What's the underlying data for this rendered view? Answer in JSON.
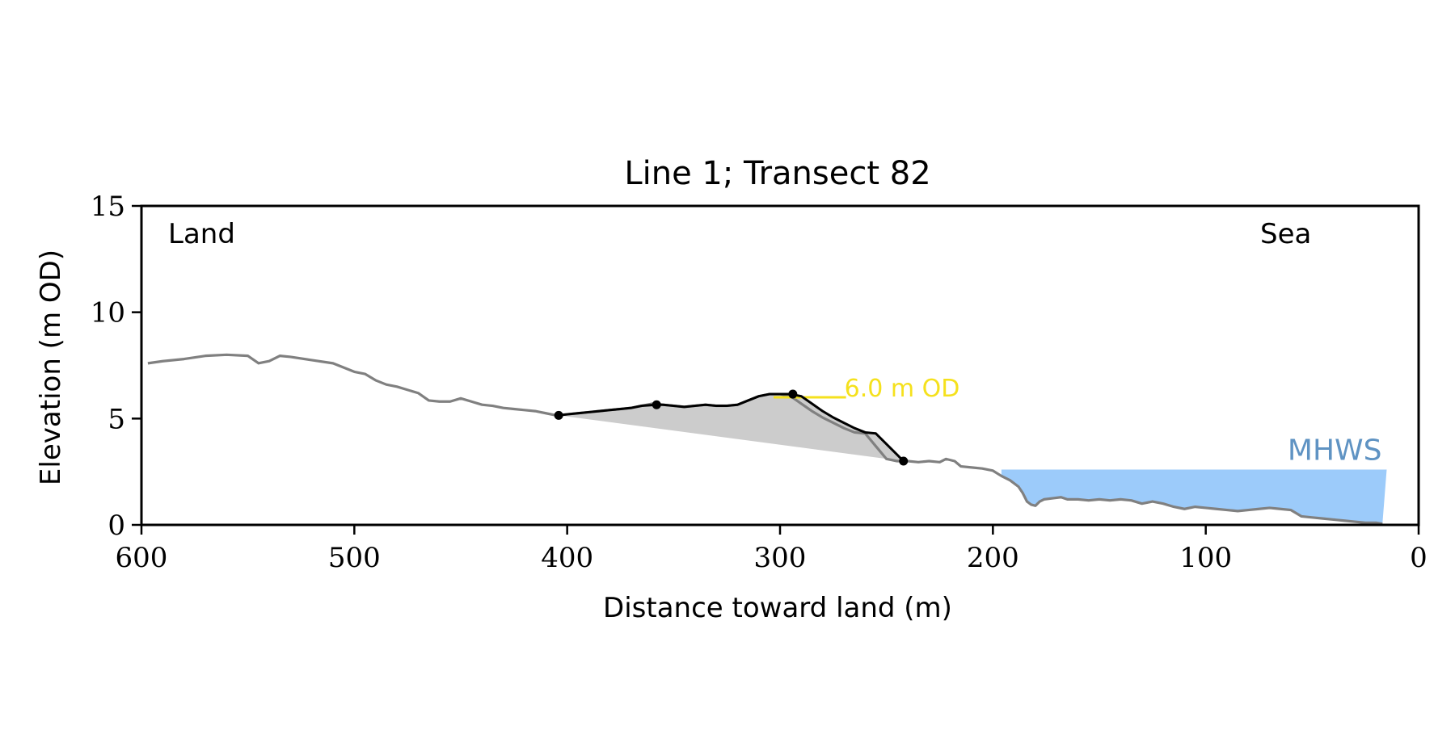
{
  "chart_data": {
    "type": "line",
    "title": "Line 1; Transect 82",
    "xlabel": "Distance toward land (m)",
    "ylabel": "Elevation (m OD)",
    "xlim": [
      600,
      0
    ],
    "ylim": [
      0,
      15
    ],
    "x_ticks": [
      600,
      500,
      400,
      300,
      200,
      100,
      0
    ],
    "y_ticks": [
      0,
      5,
      10,
      15
    ],
    "x_tick_labels": [
      "600",
      "500",
      "400",
      "300",
      "200",
      "100",
      "0"
    ],
    "y_tick_labels": [
      "0",
      "5",
      "10",
      "15"
    ],
    "grid": false,
    "corner_labels": {
      "left": "Land",
      "right": "Sea"
    },
    "colors": {
      "profile": "#808080",
      "dune": "#000000",
      "dune_fill": "#cccccc",
      "contour": "#f5e11d",
      "mhws_fill": "#9ccbfa",
      "mhws_text": "#5f93c3"
    },
    "series": [
      {
        "role": "profile",
        "x": [
          597,
          590,
          580,
          570,
          560,
          550,
          545,
          540,
          535,
          530,
          520,
          510,
          500,
          495,
          490,
          485,
          480,
          470,
          465,
          460,
          455,
          450,
          445,
          440,
          435,
          430,
          425,
          420,
          415,
          410,
          405,
          400,
          395,
          390,
          385,
          380,
          375,
          370,
          365,
          360,
          355,
          350,
          345,
          340,
          335,
          330,
          325,
          320,
          315,
          310,
          305,
          300,
          295,
          290,
          285,
          280,
          275,
          270,
          265,
          260,
          255,
          250,
          245,
          240,
          235,
          230,
          225,
          222,
          218,
          215,
          210,
          205,
          200,
          196,
          192,
          188,
          186,
          184,
          182,
          180,
          178,
          176,
          172,
          168,
          165,
          160,
          155,
          150,
          145,
          140,
          135,
          130,
          125,
          120,
          115,
          110,
          105,
          100,
          95,
          90,
          85,
          80,
          75,
          70,
          65,
          60,
          55,
          50,
          45,
          40,
          35,
          30,
          25,
          20,
          17
        ],
        "y": [
          7.6,
          7.7,
          7.8,
          7.95,
          8.0,
          7.95,
          7.6,
          7.7,
          7.95,
          7.9,
          7.75,
          7.6,
          7.2,
          7.1,
          6.8,
          6.6,
          6.5,
          6.2,
          5.85,
          5.8,
          5.8,
          5.95,
          5.8,
          5.65,
          5.6,
          5.5,
          5.45,
          5.4,
          5.35,
          5.25,
          5.15,
          5.2,
          5.25,
          5.3,
          5.35,
          5.4,
          5.45,
          5.5,
          5.6,
          5.7,
          5.65,
          5.6,
          5.55,
          5.6,
          5.65,
          5.6,
          5.6,
          5.65,
          5.85,
          6.05,
          6.15,
          6.15,
          6.05,
          5.7,
          5.35,
          5.05,
          4.8,
          4.55,
          4.35,
          4.3,
          3.7,
          3.1,
          3.0,
          3.0,
          2.95,
          3.0,
          2.95,
          3.1,
          3.0,
          2.75,
          2.7,
          2.65,
          2.55,
          2.3,
          2.1,
          1.8,
          1.5,
          1.1,
          0.95,
          0.9,
          1.1,
          1.2,
          1.25,
          1.3,
          1.2,
          1.2,
          1.15,
          1.2,
          1.15,
          1.2,
          1.15,
          1.0,
          1.1,
          1.0,
          0.85,
          0.75,
          0.85,
          0.8,
          0.75,
          0.7,
          0.65,
          0.7,
          0.75,
          0.8,
          0.75,
          0.7,
          0.4,
          0.35,
          0.3,
          0.25,
          0.2,
          0.15,
          0.1,
          0.1,
          0.05
        ]
      },
      {
        "role": "dune",
        "x": [
          404,
          400,
          395,
          390,
          385,
          380,
          375,
          370,
          365,
          358,
          355,
          350,
          345,
          340,
          335,
          330,
          325,
          320,
          315,
          310,
          305,
          300,
          295,
          290,
          285,
          280,
          275,
          270,
          265,
          260,
          255,
          252,
          248,
          245,
          242
        ],
        "y": [
          5.15,
          5.2,
          5.25,
          5.3,
          5.35,
          5.4,
          5.45,
          5.5,
          5.6,
          5.65,
          5.65,
          5.6,
          5.55,
          5.6,
          5.65,
          5.6,
          5.6,
          5.65,
          5.85,
          6.05,
          6.15,
          6.15,
          6.15,
          6.05,
          5.7,
          5.35,
          5.05,
          4.8,
          4.55,
          4.35,
          4.3,
          4.0,
          3.6,
          3.3,
          3.0
        ]
      }
    ],
    "dune_points": [
      {
        "x": 404,
        "y": 5.15
      },
      {
        "x": 358,
        "y": 5.65
      },
      {
        "x": 294,
        "y": 6.15
      },
      {
        "x": 242,
        "y": 3.0
      }
    ],
    "contour": {
      "label": "6.0 m OD",
      "y": 6.0,
      "x_start": 303,
      "x_end": 269
    },
    "mhws": {
      "label": "MHWS",
      "level": 2.6,
      "x_start": 196,
      "x_end": 15
    }
  }
}
